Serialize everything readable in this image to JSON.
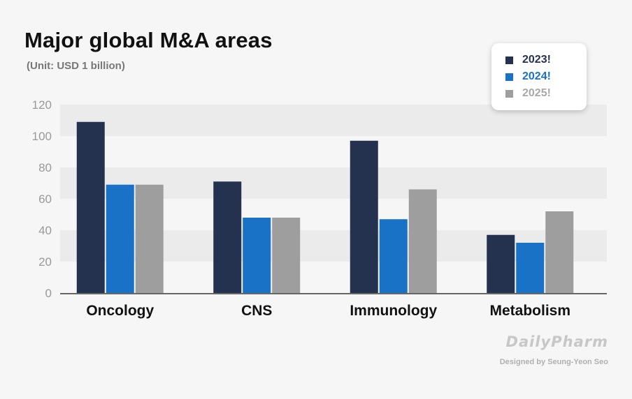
{
  "chart_data": {
    "type": "bar",
    "title": "Major global M&A areas",
    "subtitle": "(Unit: USD 1 billion)",
    "categories": [
      "Oncology",
      "CNS",
      "Immunology",
      "Metabolism"
    ],
    "series": [
      {
        "name": "2023!",
        "color": "#25324f",
        "values": [
          109,
          71,
          97,
          37
        ]
      },
      {
        "name": "2024!",
        "color": "#1a72c6",
        "values": [
          69,
          48,
          47,
          32
        ]
      },
      {
        "name": "2025!",
        "color": "#9e9e9e",
        "values": [
          69,
          48,
          66,
          52
        ]
      }
    ],
    "yticks": [
      0,
      20,
      40,
      60,
      80,
      100,
      120
    ],
    "ylim": [
      0,
      120
    ],
    "xlabel": "",
    "ylabel": "",
    "legend_position": "top-right"
  },
  "branding": {
    "logo_text": "DailyPharm",
    "credit": "Designed by Seung-Yeon Seo"
  },
  "colors": {
    "background": "#f6f6f6",
    "band": "#ebebeb",
    "axis": "#666666"
  }
}
